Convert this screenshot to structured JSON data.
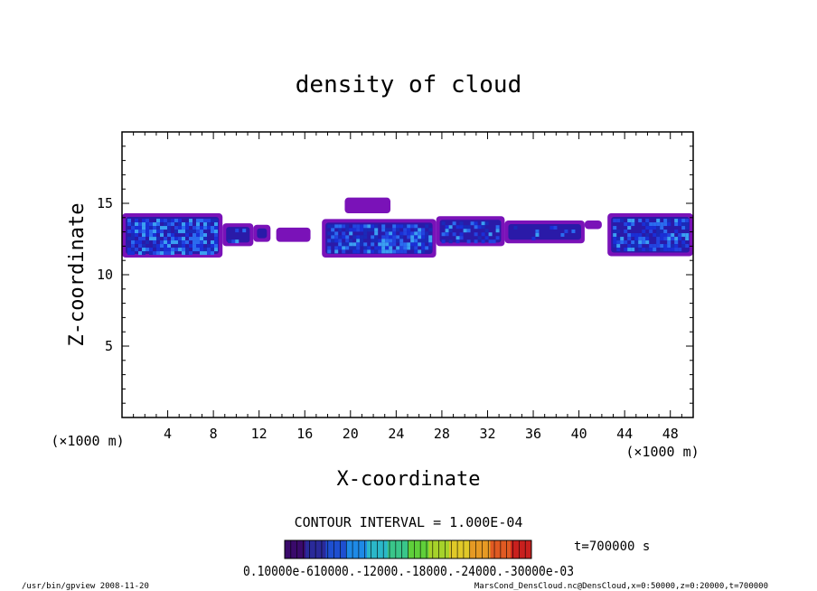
{
  "chart_data": {
    "type": "heatmap",
    "title": "density of cloud",
    "xlabel": "X-coordinate",
    "ylabel": "Z-coordinate",
    "x_unit_left": "(×1000 m)",
    "x_unit_right": "(×1000 m)",
    "xlim": [
      0,
      50
    ],
    "ylim": [
      0,
      20
    ],
    "xticks": [
      4,
      8,
      12,
      16,
      20,
      24,
      28,
      32,
      36,
      40,
      44,
      48
    ],
    "xtick_labels": [
      "4",
      "8",
      "12",
      "16",
      "20",
      "24",
      "28",
      "32",
      "36",
      "40",
      "44",
      "48"
    ],
    "yticks": [
      5,
      10,
      15
    ],
    "ytick_labels": [
      "5",
      "10",
      "15"
    ],
    "cloud_regions": [
      {
        "x0": 0.0,
        "x1": 8.8,
        "zbot": 11.2,
        "ztop": 14.3,
        "core": 0.9
      },
      {
        "x0": 8.8,
        "x1": 11.5,
        "zbot": 12.0,
        "ztop": 13.6,
        "core": 0.35
      },
      {
        "x0": 11.5,
        "x1": 13.0,
        "zbot": 12.3,
        "ztop": 13.5,
        "core": 0.1
      },
      {
        "x0": 13.5,
        "x1": 16.5,
        "zbot": 12.3,
        "ztop": 13.3,
        "core": 0.05
      },
      {
        "x0": 17.5,
        "x1": 27.5,
        "zbot": 11.2,
        "ztop": 13.9,
        "core": 0.85
      },
      {
        "x0": 27.5,
        "x1": 33.5,
        "zbot": 12.0,
        "ztop": 14.1,
        "core": 0.45
      },
      {
        "x0": 33.5,
        "x1": 40.5,
        "zbot": 12.2,
        "ztop": 13.8,
        "core": 0.15
      },
      {
        "x0": 40.5,
        "x1": 42.0,
        "zbot": 13.2,
        "ztop": 13.8,
        "core": 0.05
      },
      {
        "x0": 42.5,
        "x1": 50.0,
        "zbot": 11.3,
        "ztop": 14.3,
        "core": 0.8
      },
      {
        "x0": 19.5,
        "x1": 23.5,
        "zbot": 14.3,
        "ztop": 15.4,
        "core": 0.05
      }
    ],
    "colorbar": {
      "colors": [
        "#3a0a6b",
        "#2a2a9a",
        "#1e4fd0",
        "#1e8ae6",
        "#2bb7c8",
        "#3ac68a",
        "#5fcf3a",
        "#a6d22a",
        "#e0c828",
        "#e69a24",
        "#e05a22",
        "#c8201e"
      ],
      "labels_text": "0.10000e-610000.-12000.-18000.-24000.-30000e-03"
    }
  },
  "contour_text": "CONTOUR INTERVAL = 1.000E-04",
  "time_text": "t=700000 s",
  "footer_left": "/usr/bin/gpview  2008-11-20",
  "footer_right": "MarsCond_DensCloud.nc@DensCloud,x=0:50000,z=0:20000,t=700000"
}
